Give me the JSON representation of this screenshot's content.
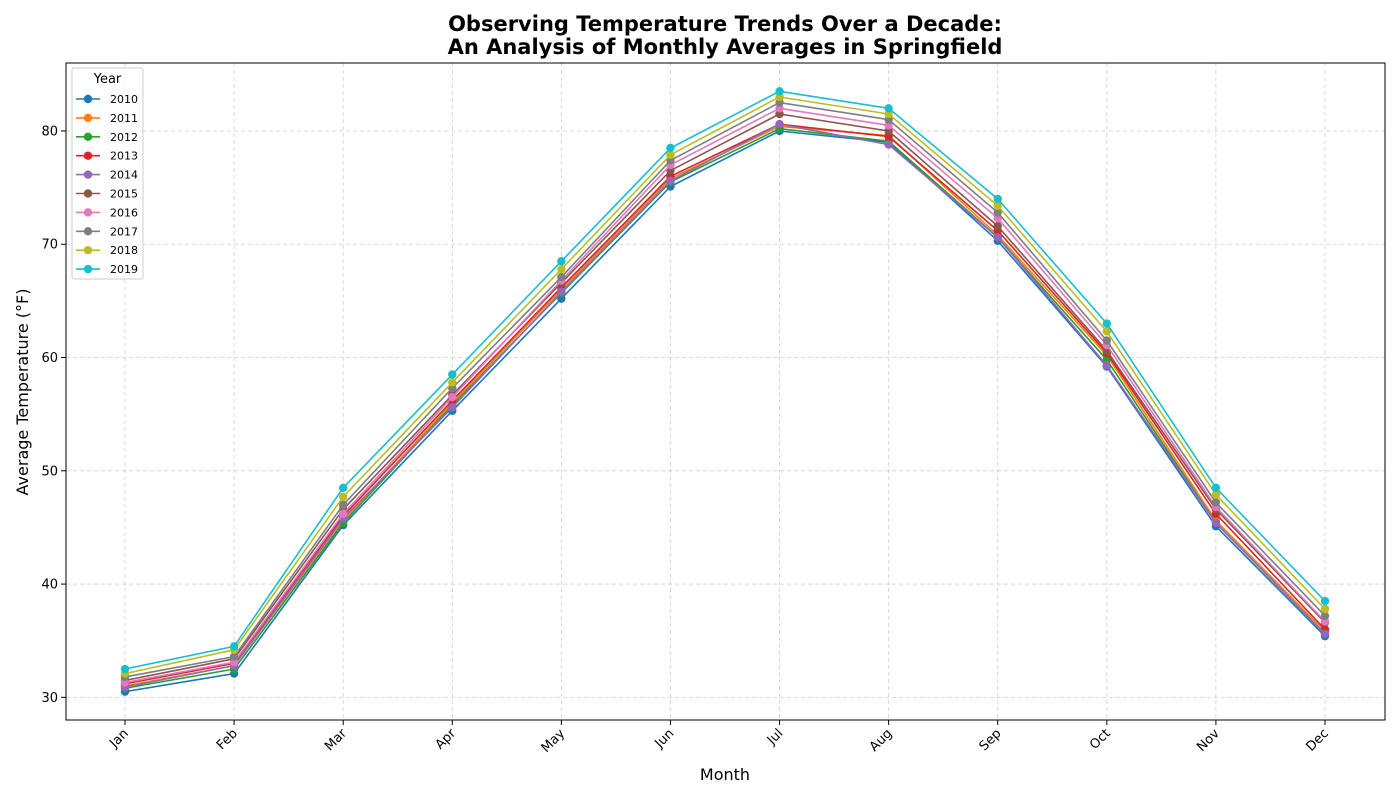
{
  "chart_data": {
    "type": "line",
    "title_line1": "Observing Temperature Trends Over a Decade:",
    "title_line2": "An Analysis of Monthly Averages in Springfield",
    "xlabel": "Month",
    "ylabel": "Average Temperature (°F)",
    "categories": [
      "Jan",
      "Feb",
      "Mar",
      "Apr",
      "May",
      "Jun",
      "Jul",
      "Aug",
      "Sep",
      "Oct",
      "Nov",
      "Dec"
    ],
    "ylim": [
      28,
      86
    ],
    "yticks": [
      30,
      40,
      50,
      60,
      70,
      80
    ],
    "grid": true,
    "legend_title": "Year",
    "legend_position": "top-left",
    "series": [
      {
        "name": "2010",
        "color": "#1f77b4",
        "values": [
          30.5,
          32.1,
          45.2,
          55.3,
          65.2,
          75.1,
          80.0,
          79.0,
          70.3,
          59.2,
          45.1,
          35.4
        ]
      },
      {
        "name": "2011",
        "color": "#ff7f0e",
        "values": [
          31.0,
          32.8,
          45.6,
          56.0,
          66.0,
          75.8,
          80.4,
          79.6,
          70.8,
          60.2,
          45.6,
          35.8
        ]
      },
      {
        "name": "2012",
        "color": "#2ca02c",
        "values": [
          30.8,
          32.5,
          45.4,
          55.8,
          65.7,
          75.5,
          80.2,
          79.1,
          70.6,
          59.8,
          45.4,
          35.6
        ]
      },
      {
        "name": "2013",
        "color": "#d62728",
        "values": [
          31.2,
          33.0,
          46.0,
          56.2,
          66.2,
          76.0,
          80.6,
          79.5,
          71.2,
          60.4,
          46.2,
          36.0
        ]
      },
      {
        "name": "2014",
        "color": "#9467bd",
        "values": [
          30.9,
          32.8,
          45.8,
          55.6,
          65.8,
          75.6,
          80.6,
          78.8,
          70.6,
          59.3,
          45.4,
          35.6
        ]
      },
      {
        "name": "2015",
        "color": "#8c564b",
        "values": [
          31.5,
          33.4,
          46.6,
          56.7,
          66.6,
          76.5,
          81.5,
          80.0,
          71.6,
          60.6,
          46.6,
          36.6
        ]
      },
      {
        "name": "2016",
        "color": "#e377c2",
        "values": [
          31.3,
          33.1,
          46.2,
          56.5,
          66.8,
          77.0,
          82.0,
          80.5,
          72.3,
          61.1,
          46.8,
          36.7
        ]
      },
      {
        "name": "2017",
        "color": "#7f7f7f",
        "values": [
          31.8,
          33.6,
          47.0,
          57.3,
          67.1,
          77.4,
          82.5,
          81.0,
          72.8,
          61.5,
          47.2,
          37.2
        ]
      },
      {
        "name": "2018",
        "color": "#bcbd22",
        "values": [
          32.1,
          34.2,
          47.7,
          57.8,
          67.8,
          77.9,
          83.0,
          81.5,
          73.4,
          62.3,
          47.9,
          37.8
        ]
      },
      {
        "name": "2019",
        "color": "#17becf",
        "values": [
          32.5,
          34.5,
          48.5,
          58.5,
          68.5,
          78.5,
          83.5,
          82.0,
          74.0,
          63.0,
          48.5,
          38.5
        ]
      }
    ]
  }
}
